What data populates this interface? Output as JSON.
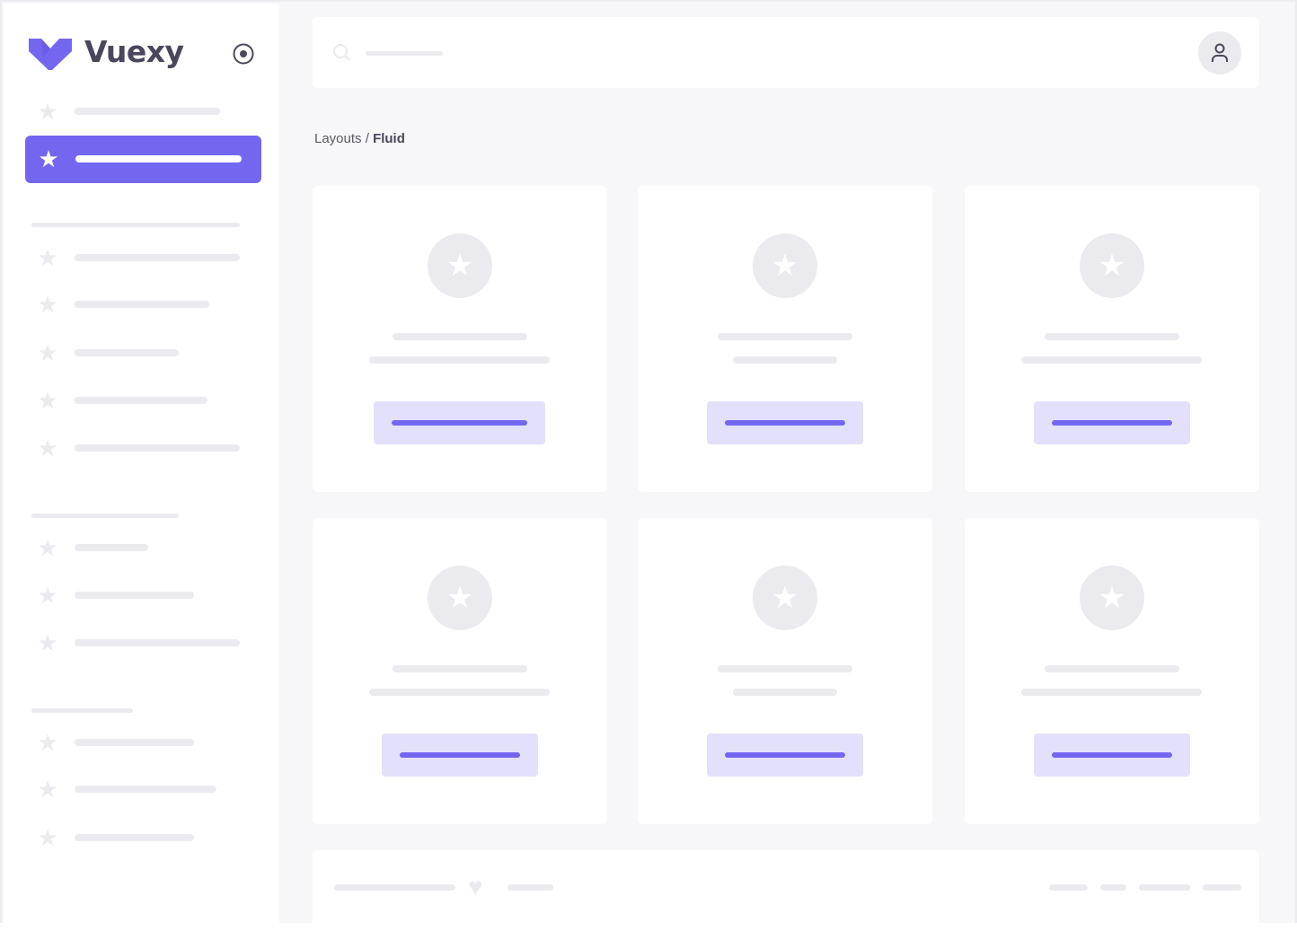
{
  "sidebar": {
    "brand": "Vuexy",
    "brand_color": "#7367f0",
    "toggle_icon": "radio-circle-icon",
    "item_icon": "star-icon"
  },
  "header": {
    "search_icon": "search-icon",
    "user_icon": "user-icon"
  },
  "breadcrumb": {
    "parent": "Layouts",
    "separator": " / ",
    "current": "Fluid"
  },
  "cards": {
    "count": 6,
    "icon": "star-icon"
  },
  "footer": {
    "icon": "heart-icon"
  }
}
